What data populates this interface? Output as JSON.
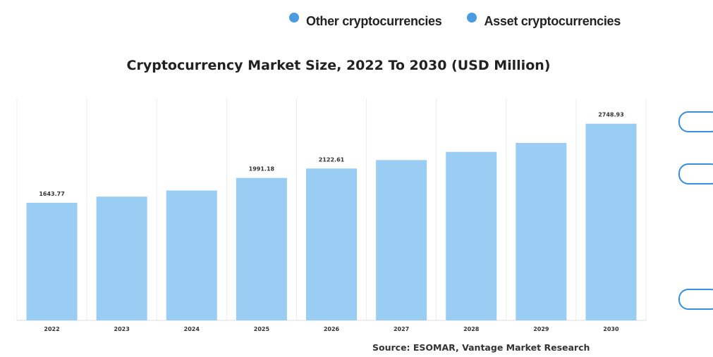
{
  "legend": {
    "items": [
      {
        "label": "Other cryptocurrencies",
        "color": "#4a9be0"
      },
      {
        "label": "Asset cryptocurrencies",
        "color": "#4a9be0"
      }
    ]
  },
  "source": "Source: ESOMAR, Vantage Market Research",
  "chart_data": {
    "type": "bar",
    "title": "Cryptocurrency Market Size, 2022 To 2030 (USD Million)",
    "categories": [
      "2022",
      "2023",
      "2024",
      "2025",
      "2026",
      "2027",
      "2028",
      "2029",
      "2030"
    ],
    "values": [
      1643.77,
      1730,
      1815,
      1991.18,
      2122.61,
      2240,
      2355,
      2480,
      2748.93
    ],
    "data_labels": [
      "1643.77",
      "",
      "",
      "1991.18",
      "2122.61",
      "",
      "",
      "",
      "2748.93"
    ],
    "xlabel": "",
    "ylabel": "",
    "ylim": [
      0,
      3100
    ],
    "bar_color": "#99cdf3",
    "grid": "vertical separators"
  }
}
